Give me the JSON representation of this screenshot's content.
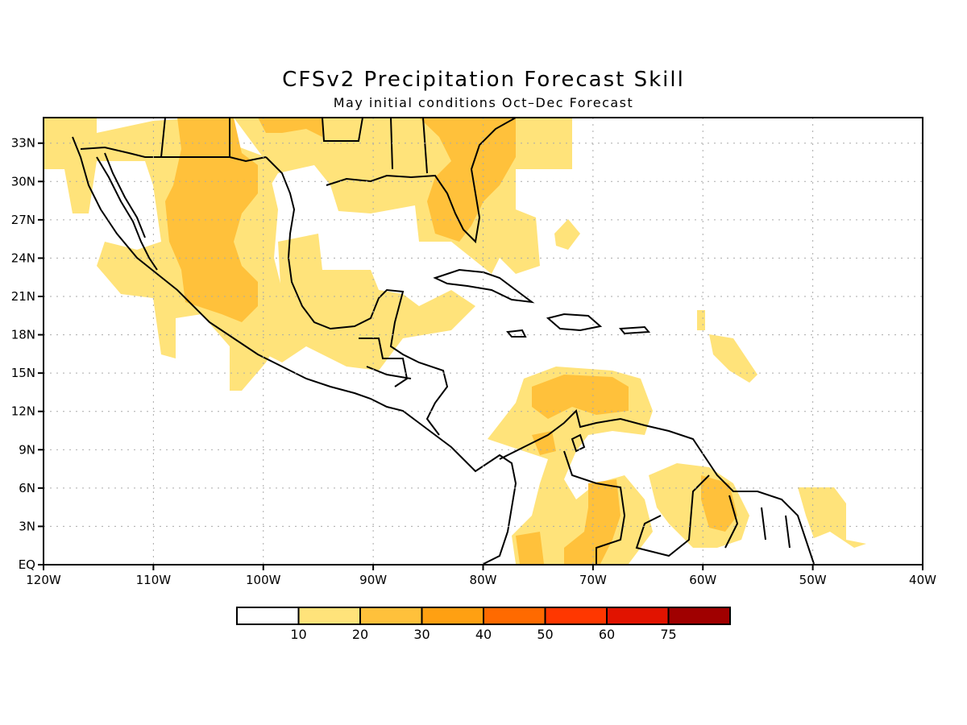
{
  "title": "CFSv2 Precipitation Forecast Skill",
  "subtitle": "May initial conditions   Oct–Dec Forecast",
  "map": {
    "lon_range": [
      -120,
      -40
    ],
    "lat_range": [
      0,
      35
    ],
    "x_ticks": [
      "120W",
      "110W",
      "100W",
      "90W",
      "80W",
      "70W",
      "60W",
      "50W",
      "40W"
    ],
    "y_ticks": [
      "EQ",
      "3N",
      "6N",
      "9N",
      "12N",
      "15N",
      "18N",
      "21N",
      "24N",
      "27N",
      "30N",
      "33N"
    ],
    "grid": "dotted"
  },
  "legend": {
    "labels": [
      "10",
      "20",
      "30",
      "40",
      "50",
      "60",
      "75"
    ],
    "colors": [
      "#ffffff",
      "#ffe37a",
      "#ffc13b",
      "#ffa012",
      "#ff6a00",
      "#ff3700",
      "#e11300",
      "#a00000"
    ]
  },
  "colors": {
    "level1": "#ffe37a",
    "level2": "#ffc13b",
    "coastline": "#000000"
  }
}
